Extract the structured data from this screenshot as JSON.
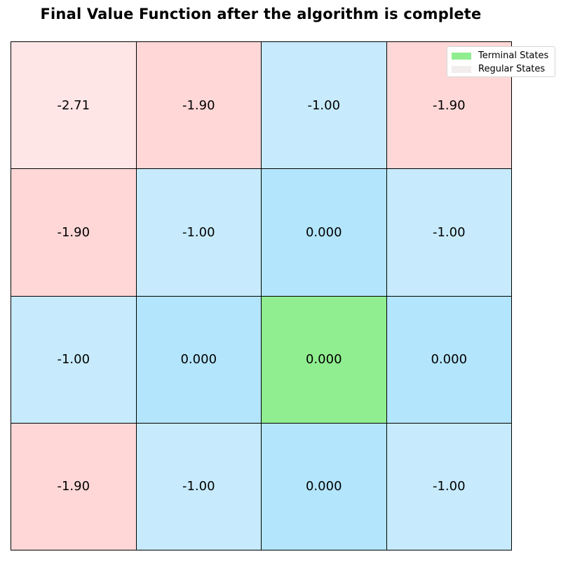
{
  "chart_data": {
    "type": "heatmap",
    "title": "Final Value Function after the algorithm is complete",
    "rows": 4,
    "cols": 4,
    "values": [
      [
        "-2.71",
        "-1.90",
        "-1.00",
        "-1.90"
      ],
      [
        "-1.90",
        "-1.00",
        "0.000",
        "-1.00"
      ],
      [
        "-1.00",
        "0.000",
        "0.000",
        "0.000"
      ],
      [
        "-1.90",
        "-1.00",
        "0.000",
        "-1.00"
      ]
    ],
    "terminal_cells": [
      [
        2,
        2
      ]
    ],
    "colors": {
      "terminal": "#90ee90",
      "value_0": "#b3e5fc",
      "value_-1": "#c7ebfc",
      "value_-1.9": "#ffd7d7",
      "value_-2.71": "#ffe6e6",
      "regular_legend": "#f2eeee",
      "grid_line": "#000000"
    },
    "legend": {
      "placement": "top-right",
      "entries": [
        {
          "label": "Terminal States",
          "color": "#90ee90"
        },
        {
          "label": "Regular States",
          "color": "#f2eeee"
        }
      ]
    }
  }
}
